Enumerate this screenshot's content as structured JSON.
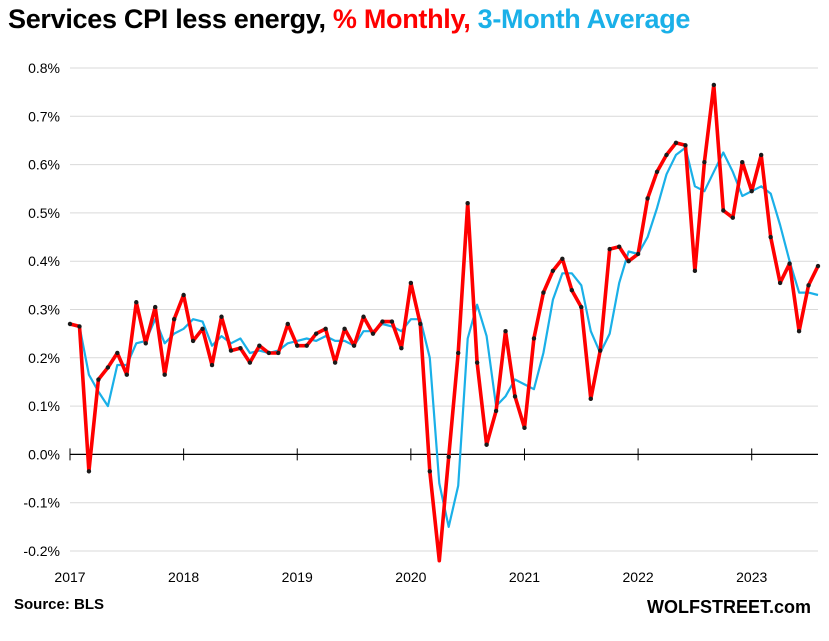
{
  "title": {
    "part1": "Services CPI less energy,",
    "part2": "% Monthly,",
    "part3": "3-Month  Average"
  },
  "colors": {
    "monthly": "#ff0000",
    "average": "#1ab0e8",
    "marker": "#1a1a1a",
    "title_black": "#000000"
  },
  "footer": {
    "source": "Source: BLS",
    "brand": "WOLFSTREET.com"
  },
  "chart_data": {
    "type": "line",
    "title": "Services CPI less energy, % Monthly, 3-Month Average",
    "xlabel": "",
    "ylabel": "",
    "ylim": [
      -0.2,
      0.8
    ],
    "xlim": [
      "2017-01",
      "2023-08"
    ],
    "grid": "horizontal",
    "yticks": [
      {
        "value": 0.8,
        "label": "0.8%"
      },
      {
        "value": 0.7,
        "label": "0.7%"
      },
      {
        "value": 0.6,
        "label": "0.6%"
      },
      {
        "value": 0.5,
        "label": "0.5%"
      },
      {
        "value": 0.4,
        "label": "0.4%"
      },
      {
        "value": 0.3,
        "label": "0.3%"
      },
      {
        "value": 0.2,
        "label": "0.2%"
      },
      {
        "value": 0.1,
        "label": "0.1%"
      },
      {
        "value": 0.0,
        "label": "0.0%"
      },
      {
        "value": -0.1,
        "label": "-0.1%"
      },
      {
        "value": -0.2,
        "label": "-0.2%"
      }
    ],
    "xticks": [
      {
        "value": "2017-01",
        "label": "2017"
      },
      {
        "value": "2018-01",
        "label": "2018"
      },
      {
        "value": "2019-01",
        "label": "2019"
      },
      {
        "value": "2020-01",
        "label": "2020"
      },
      {
        "value": "2021-01",
        "label": "2021"
      },
      {
        "value": "2022-01",
        "label": "2022"
      },
      {
        "value": "2023-01",
        "label": "2023"
      }
    ],
    "x": [
      "2017-01",
      "2017-02",
      "2017-03",
      "2017-04",
      "2017-05",
      "2017-06",
      "2017-07",
      "2017-08",
      "2017-09",
      "2017-10",
      "2017-11",
      "2017-12",
      "2018-01",
      "2018-02",
      "2018-03",
      "2018-04",
      "2018-05",
      "2018-06",
      "2018-07",
      "2018-08",
      "2018-09",
      "2018-10",
      "2018-11",
      "2018-12",
      "2019-01",
      "2019-02",
      "2019-03",
      "2019-04",
      "2019-05",
      "2019-06",
      "2019-07",
      "2019-08",
      "2019-09",
      "2019-10",
      "2019-11",
      "2019-12",
      "2020-01",
      "2020-02",
      "2020-03",
      "2020-04",
      "2020-05",
      "2020-06",
      "2020-07",
      "2020-08",
      "2020-09",
      "2020-10",
      "2020-11",
      "2020-12",
      "2021-01",
      "2021-02",
      "2021-03",
      "2021-04",
      "2021-05",
      "2021-06",
      "2021-07",
      "2021-08",
      "2021-09",
      "2021-10",
      "2021-11",
      "2021-12",
      "2022-01",
      "2022-02",
      "2022-03",
      "2022-04",
      "2022-05",
      "2022-06",
      "2022-07",
      "2022-08",
      "2022-09",
      "2022-10",
      "2022-11",
      "2022-12",
      "2023-01",
      "2023-02",
      "2023-03",
      "2023-04",
      "2023-05",
      "2023-06",
      "2023-07",
      "2023-08"
    ],
    "series": [
      {
        "name": "% Monthly",
        "values": [
          0.27,
          0.265,
          -0.035,
          0.155,
          0.18,
          0.21,
          0.165,
          0.315,
          0.23,
          0.305,
          0.165,
          0.28,
          0.33,
          0.235,
          0.26,
          0.185,
          0.285,
          0.215,
          0.22,
          0.19,
          0.225,
          0.21,
          0.21,
          0.27,
          0.225,
          0.225,
          0.25,
          0.26,
          0.19,
          0.26,
          0.225,
          0.285,
          0.25,
          0.275,
          0.275,
          0.22,
          0.355,
          0.27,
          -0.035,
          -0.22,
          -0.005,
          0.21,
          0.52,
          0.19,
          0.02,
          0.09,
          0.255,
          0.12,
          0.055,
          0.24,
          0.335,
          0.38,
          0.405,
          0.34,
          0.305,
          0.115,
          0.215,
          0.425,
          0.43,
          0.4,
          0.415,
          0.53,
          0.585,
          0.62,
          0.645,
          0.64,
          0.38,
          0.605,
          0.765,
          0.505,
          0.49,
          0.605,
          0.545,
          0.62,
          0.45,
          0.355,
          0.395,
          0.255,
          0.35,
          0.39
        ]
      },
      {
        "name": "3-Month  Average",
        "values": [
          0.27,
          0.265,
          0.165,
          0.13,
          0.1,
          0.185,
          0.185,
          0.23,
          0.235,
          0.28,
          0.23,
          0.25,
          0.26,
          0.28,
          0.275,
          0.225,
          0.245,
          0.23,
          0.24,
          0.21,
          0.215,
          0.21,
          0.215,
          0.23,
          0.235,
          0.24,
          0.235,
          0.245,
          0.235,
          0.235,
          0.225,
          0.255,
          0.255,
          0.27,
          0.265,
          0.255,
          0.28,
          0.28,
          0.2,
          -0.06,
          -0.15,
          -0.065,
          0.24,
          0.31,
          0.245,
          0.1,
          0.12,
          0.155,
          0.145,
          0.135,
          0.21,
          0.32,
          0.375,
          0.375,
          0.35,
          0.255,
          0.21,
          0.25,
          0.355,
          0.42,
          0.415,
          0.45,
          0.51,
          0.58,
          0.62,
          0.635,
          0.555,
          0.545,
          0.585,
          0.625,
          0.585,
          0.535,
          0.545,
          0.555,
          0.54,
          0.475,
          0.4,
          0.335,
          0.335,
          0.33
        ]
      }
    ]
  }
}
